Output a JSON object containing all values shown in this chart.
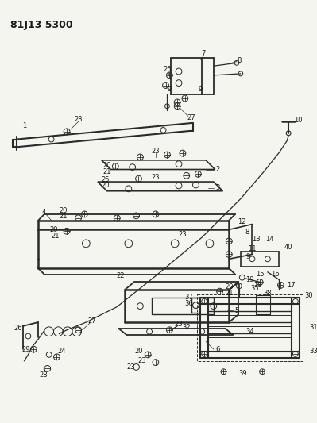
{
  "title": "81J13 5300",
  "bg_color": "#f5f5f0",
  "line_color": "#2a2a2a",
  "text_color": "#1a1a1a",
  "figsize": [
    3.99,
    5.33
  ],
  "dpi": 100,
  "label_fs": 6.0,
  "title_fs": 9.0
}
